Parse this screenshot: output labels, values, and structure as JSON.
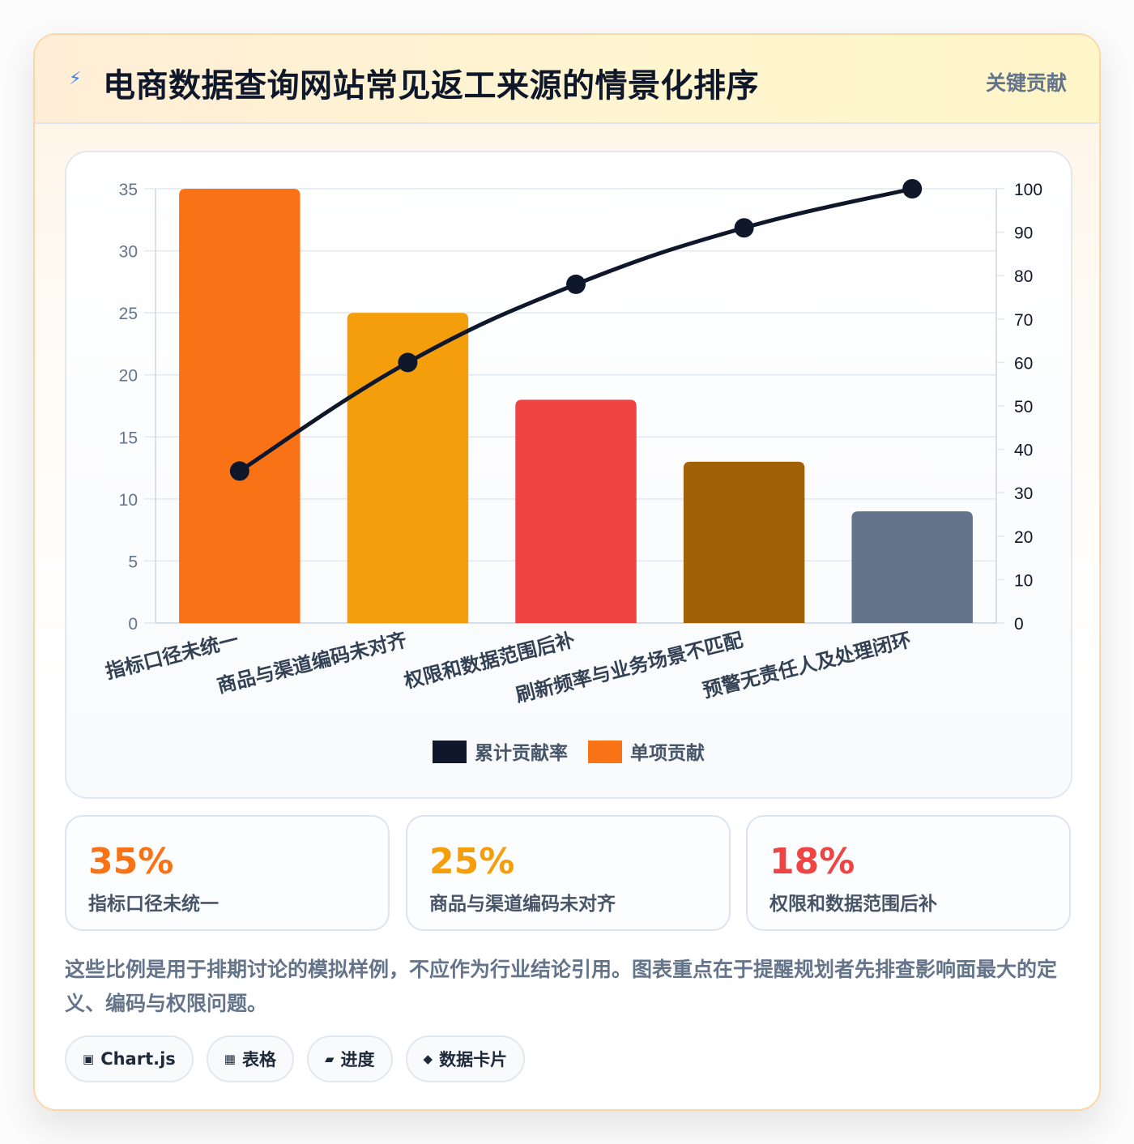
{
  "header": {
    "icon": "lightning-icon",
    "title": "电商数据查询网站常见返工来源的情景化排序",
    "badge": "关键贡献"
  },
  "chart_data": {
    "type": "bar",
    "categories": [
      "指标口径未统一",
      "商品与渠道编码未对齐",
      "权限和数据范围后补",
      "刷新频率与业务场景不匹配",
      "预警无责任人及处理闭环"
    ],
    "series": [
      {
        "name": "单项贡献",
        "type": "bar",
        "axis": "left",
        "values": [
          35,
          25,
          18,
          13,
          9
        ],
        "colors": [
          "#f97316",
          "#f59e0b",
          "#ef4444",
          "#a16207",
          "#64748b"
        ]
      },
      {
        "name": "累计贡献率",
        "type": "line",
        "axis": "right",
        "values": [
          35,
          60,
          78,
          91,
          100
        ],
        "color": "#0f172a"
      }
    ],
    "y_left": {
      "min": 0,
      "max": 35,
      "ticks": [
        "0",
        "5",
        "10",
        "15",
        "20",
        "25",
        "30",
        "35"
      ]
    },
    "y_right": {
      "min": 0,
      "max": 100,
      "ticks": [
        "0",
        "10",
        "20",
        "30",
        "40",
        "50",
        "60",
        "70",
        "80",
        "90",
        "100"
      ]
    },
    "grid": true,
    "legend": {
      "position": "bottom",
      "items": [
        {
          "label": "累计贡献率",
          "color": "#0f172a"
        },
        {
          "label": "单项贡献",
          "color": "#f97316"
        }
      ]
    }
  },
  "stats": [
    {
      "value": "35%",
      "label": "指标口径未统一",
      "color": "#f97316"
    },
    {
      "value": "25%",
      "label": "商品与渠道编码未对齐",
      "color": "#f59e0b"
    },
    {
      "value": "18%",
      "label": "权限和数据范围后补",
      "color": "#ef4444"
    }
  ],
  "note": "这些比例是用于排期讨论的模拟样例，不应作为行业结论引用。图表重点在于提醒规划者先排查影响面最大的定义、编码与权限问题。",
  "chips": [
    {
      "icon": "chart-icon",
      "glyph": "▣",
      "label": "Chart.js"
    },
    {
      "icon": "table-icon",
      "glyph": "▦",
      "label": "表格"
    },
    {
      "icon": "progress-icon",
      "glyph": "▰",
      "label": "进度"
    },
    {
      "icon": "card-icon",
      "glyph": "◆",
      "label": "数据卡片"
    }
  ]
}
